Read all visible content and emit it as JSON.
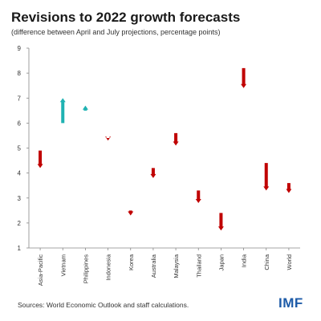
{
  "title": "Revisions to 2022 growth forecasts",
  "subtitle": "(difference between April and July projections, percentage points)",
  "source": "Sources: World Economic Outlook and staff calculations.",
  "logo_text": "IMF",
  "colors": {
    "down": "#c00000",
    "up": "#1fb2b2",
    "axis": "#888888",
    "text": "#333333"
  },
  "chart_data": {
    "type": "arrow-range",
    "title": "Revisions to 2022 growth forecasts",
    "subtitle": "(difference between April and July projections, percentage points)",
    "categories": [
      "Asia-Pacific",
      "Vietnam",
      "Philippines",
      "Indonesia",
      "Korea",
      "Australia",
      "Malaysia",
      "Thailand",
      "Japan",
      "India",
      "China",
      "World"
    ],
    "series": [
      {
        "values_april": [
          4.9,
          6.0,
          6.5,
          5.4,
          2.5,
          4.2,
          5.6,
          3.3,
          2.4,
          8.2,
          4.4,
          3.6
        ]
      },
      {
        "values_july": [
          4.2,
          7.0,
          6.7,
          5.3,
          2.3,
          3.8,
          5.1,
          2.8,
          1.7,
          7.4,
          3.3,
          3.2
        ]
      }
    ],
    "yticks": [
      1,
      2,
      3,
      4,
      5,
      6,
      7,
      8,
      9
    ],
    "ylim": [
      1,
      9
    ],
    "grid": false,
    "legend": "none"
  }
}
